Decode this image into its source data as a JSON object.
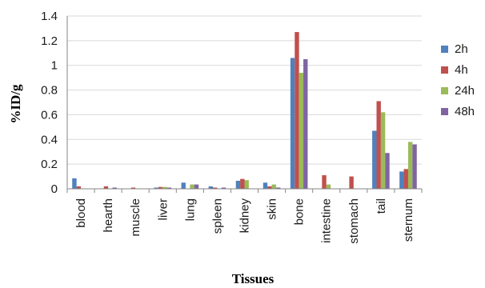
{
  "chart_data": {
    "type": "bar",
    "title": "",
    "xlabel": "Tissues",
    "ylabel": "%ID/g",
    "ylim": [
      0,
      1.4
    ],
    "yticks": [
      "0",
      "0.2",
      "0.4",
      "0.6",
      "0.8",
      "1",
      "1.2",
      "1.4"
    ],
    "legend_position": "right",
    "categories": [
      "blood",
      "hearth",
      "muscle",
      "liver",
      "lung",
      "spleen",
      "kidney",
      "skin",
      "bone",
      "intestine",
      "stomach",
      "tail",
      "sternum"
    ],
    "series": [
      {
        "name": "2h",
        "color": "#4F81BD",
        "values": [
          0.085,
          0.0,
          0.0,
          0.01,
          0.05,
          0.02,
          0.065,
          0.05,
          1.06,
          0.0,
          0.0,
          0.47,
          0.14
        ]
      },
      {
        "name": "4h",
        "color": "#C0504D",
        "values": [
          0.02,
          0.02,
          0.01,
          0.015,
          0.0,
          0.01,
          0.08,
          0.02,
          1.27,
          0.11,
          0.1,
          0.71,
          0.16
        ]
      },
      {
        "name": "24h",
        "color": "#9BBB59",
        "values": [
          0.0,
          0.0,
          0.0,
          0.015,
          0.035,
          0.0,
          0.07,
          0.035,
          0.94,
          0.035,
          0.0,
          0.62,
          0.38
        ]
      },
      {
        "name": "48h",
        "color": "#8064A2",
        "values": [
          0.0,
          0.01,
          0.0,
          0.01,
          0.035,
          0.01,
          0.0,
          0.01,
          1.05,
          0.0,
          0.0,
          0.29,
          0.36
        ]
      }
    ]
  }
}
